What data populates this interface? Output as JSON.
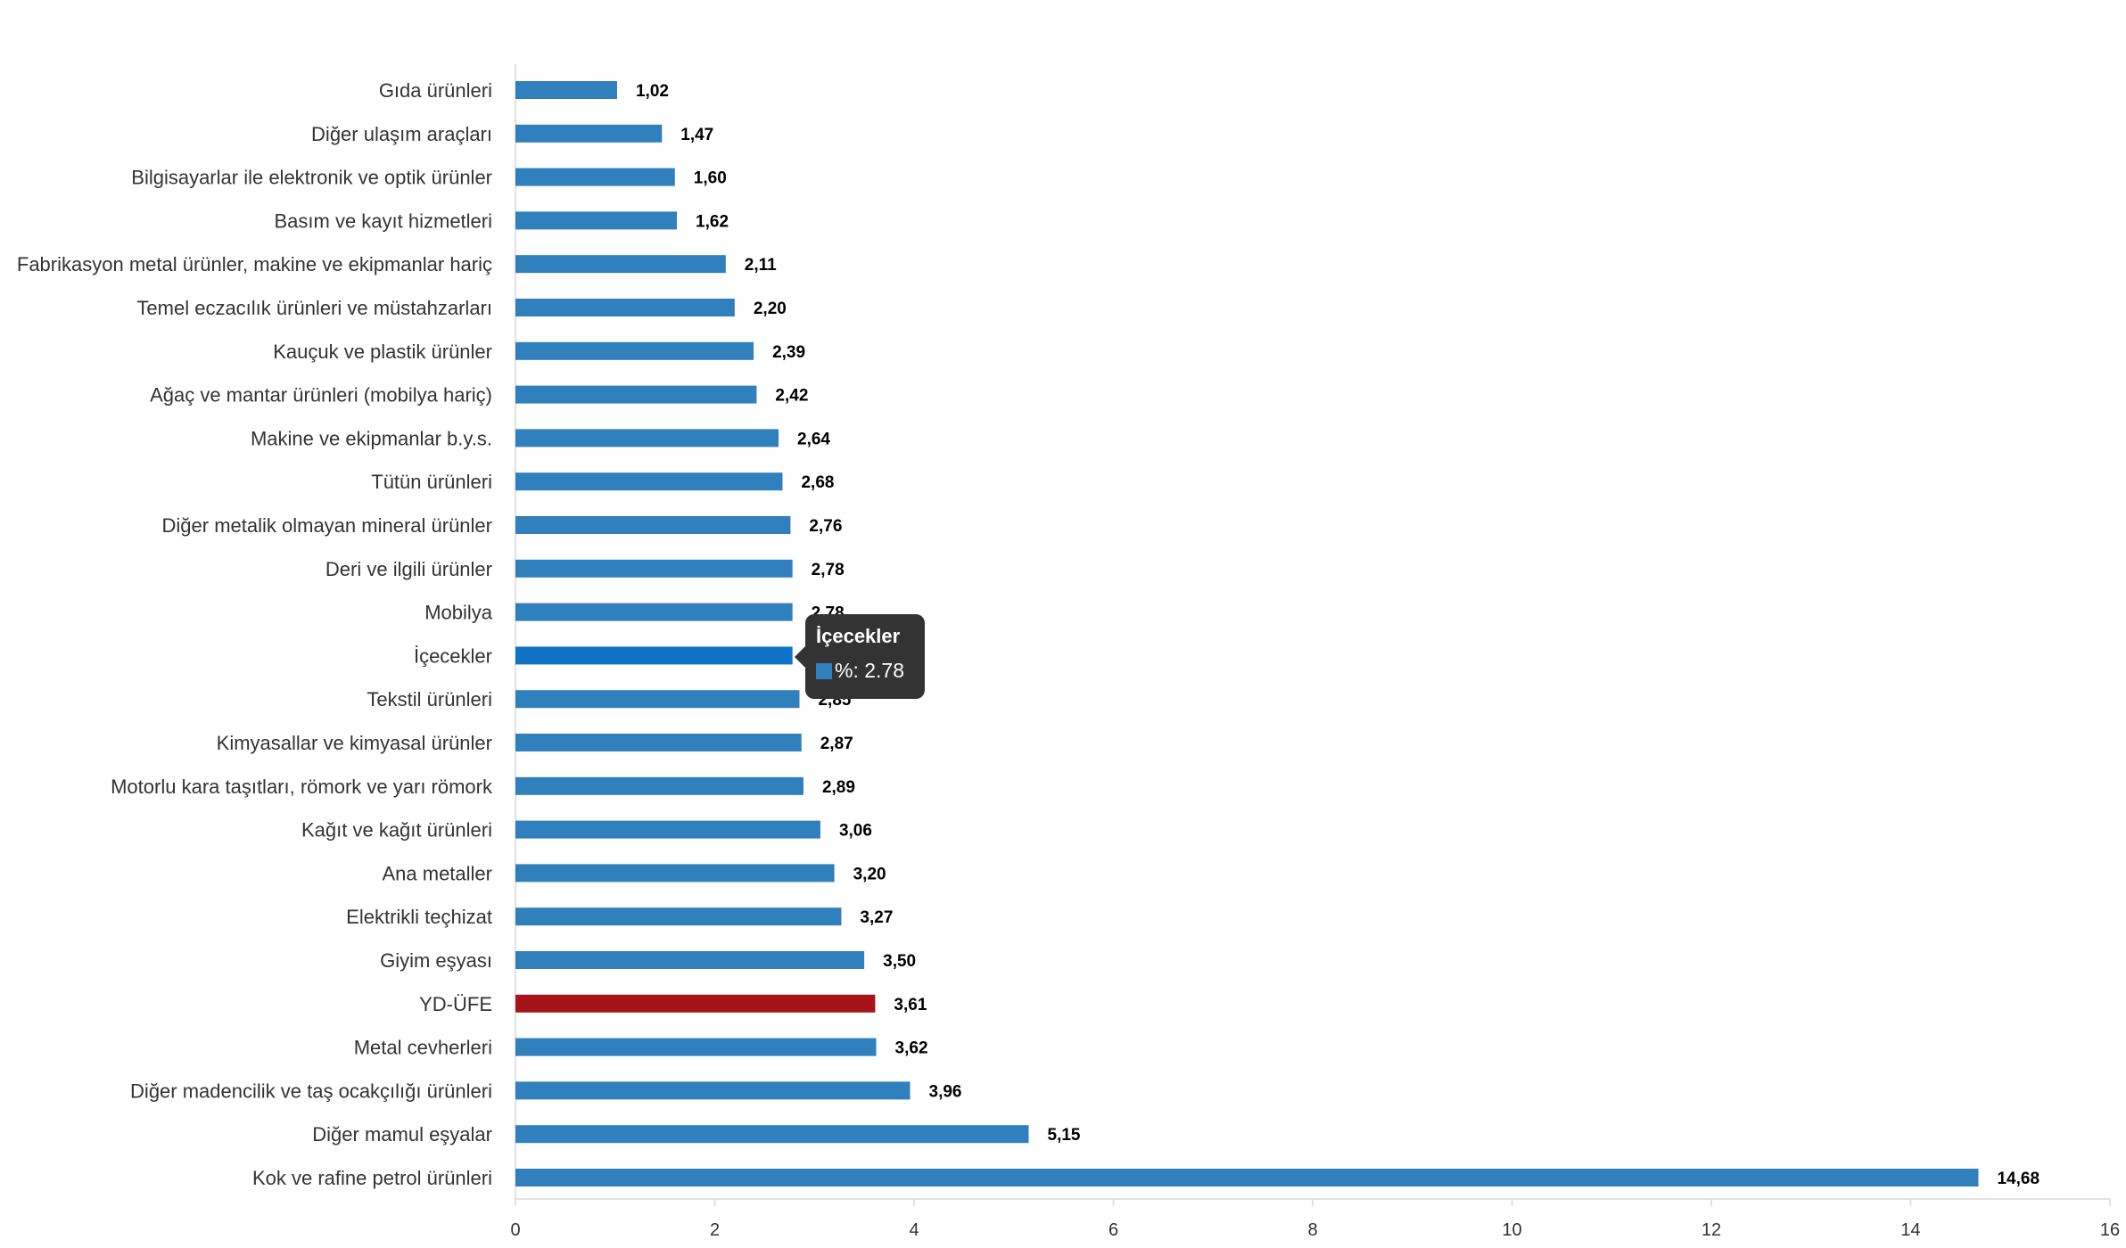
{
  "chart_data": {
    "type": "bar",
    "orientation": "horizontal",
    "title": "",
    "xlabel": "",
    "ylabel": "",
    "xlim": [
      0,
      16
    ],
    "xticks": [
      0,
      2,
      4,
      6,
      8,
      10,
      12,
      14,
      16
    ],
    "grid": false,
    "legend": "none",
    "categories": [
      "Gıda ürünleri",
      "Diğer ulaşım araçları",
      "Bilgisayarlar ile elektronik ve optik ürünler",
      "Basım ve kayıt hizmetleri",
      "Fabrikasyon metal ürünler, makine ve ekipmanlar hariç",
      "Temel eczacılık ürünleri ve müstahzarları",
      "Kauçuk ve plastik ürünler",
      "Ağaç ve mantar ürünleri (mobilya hariç)",
      "Makine ve ekipmanlar b.y.s.",
      "Tütün ürünleri",
      "Diğer metalik olmayan mineral ürünler",
      "Deri ve ilgili ürünler",
      "Mobilya",
      "İçecekler",
      "Tekstil ürünleri",
      "Kimyasallar ve kimyasal ürünler",
      "Motorlu kara taşıtları, römork ve yarı römork",
      "Kağıt ve kağıt ürünleri",
      "Ana metaller",
      "Elektrikli teçhizat",
      "Giyim eşyası",
      "YD-ÜFE",
      "Metal cevherleri",
      "Diğer madencilik ve taş ocakçılığı ürünleri",
      "Diğer mamul eşyalar",
      "Kok ve rafine petrol ürünleri"
    ],
    "values": [
      1.02,
      1.47,
      1.6,
      1.62,
      2.11,
      2.2,
      2.39,
      2.42,
      2.64,
      2.68,
      2.76,
      2.78,
      2.78,
      2.78,
      2.85,
      2.87,
      2.89,
      3.06,
      3.2,
      3.27,
      3.5,
      3.61,
      3.62,
      3.96,
      5.15,
      14.68
    ],
    "value_labels": [
      "1,02",
      "1,47",
      "1,60",
      "1,62",
      "2,11",
      "2,20",
      "2,39",
      "2,42",
      "2,64",
      "2,68",
      "2,76",
      "2,78",
      "2,78",
      "2,78",
      "2,85",
      "2,87",
      "2,89",
      "3,06",
      "3,20",
      "3,27",
      "3,50",
      "3,61",
      "3,62",
      "3,96",
      "5,15",
      "14,68"
    ],
    "colors": {
      "bar": "#3080bd",
      "highlight": "#a61419",
      "hover": "#0e73c4",
      "tooltip_bg": "#333333"
    },
    "highlight_category": "YD-ÜFE",
    "hover_category": "İçecekler"
  },
  "tooltip": {
    "title": "İçecekler",
    "series_label": "%: 2.78"
  }
}
